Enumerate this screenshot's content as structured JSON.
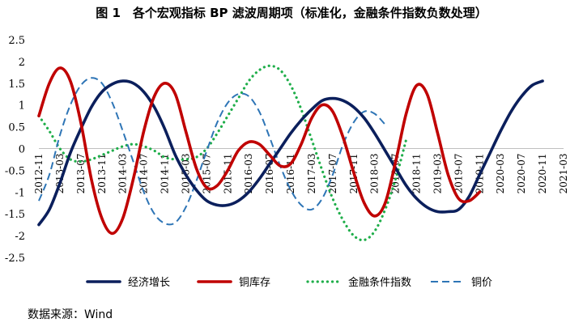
{
  "chart_data": {
    "type": "line",
    "title": "图 1　各个宏观指标 BP 滤波周期项（标准化，金融条件指数负数处理）",
    "xlabel": "",
    "ylabel": "",
    "ylim": [
      -2.5,
      2.5
    ],
    "y_ticks": [
      "2.5",
      "2",
      "1.5",
      "1",
      "0.5",
      "0",
      "-0.5",
      "-1",
      "-1.5",
      "-2",
      "-2.5"
    ],
    "x_tick_labels": [
      "2012-11",
      "2013-03",
      "2013-07",
      "2013-11",
      "2014-03",
      "2014-07",
      "2014-11",
      "2015-03",
      "2015-07",
      "2015-11",
      "2016-03",
      "2016-07",
      "2016-11",
      "2017-03",
      "2017-07",
      "2017-11",
      "2018-03",
      "2018-07",
      "2018-11",
      "2019-03",
      "2019-07",
      "2019-11",
      "2020-03",
      "2020-07",
      "2020-11",
      "2021-03"
    ],
    "grid": false,
    "legend_position": "bottom",
    "series": [
      {
        "name": "经济增长",
        "color": "#0b1f5c",
        "dash": "solid",
        "points": [
          [
            "2012-11",
            -1.75
          ],
          [
            "2013-01",
            -1.4
          ],
          [
            "2013-03",
            -0.8
          ],
          [
            "2013-05",
            -0.1
          ],
          [
            "2013-07",
            0.45
          ],
          [
            "2013-09",
            0.95
          ],
          [
            "2013-11",
            1.3
          ],
          [
            "2014-01",
            1.48
          ],
          [
            "2014-03",
            1.55
          ],
          [
            "2014-05",
            1.5
          ],
          [
            "2014-07",
            1.3
          ],
          [
            "2014-09",
            0.95
          ],
          [
            "2014-11",
            0.45
          ],
          [
            "2015-01",
            -0.15
          ],
          [
            "2015-03",
            -0.6
          ],
          [
            "2015-05",
            -0.95
          ],
          [
            "2015-07",
            -1.2
          ],
          [
            "2015-09",
            -1.3
          ],
          [
            "2015-11",
            -1.3
          ],
          [
            "2016-01",
            -1.2
          ],
          [
            "2016-03",
            -1.0
          ],
          [
            "2016-05",
            -0.7
          ],
          [
            "2016-07",
            -0.35
          ],
          [
            "2016-09",
            0.0
          ],
          [
            "2016-11",
            0.35
          ],
          [
            "2017-01",
            0.65
          ],
          [
            "2017-03",
            0.9
          ],
          [
            "2017-05",
            1.1
          ],
          [
            "2017-07",
            1.15
          ],
          [
            "2017-09",
            1.1
          ],
          [
            "2017-11",
            0.95
          ],
          [
            "2018-01",
            0.7
          ],
          [
            "2018-03",
            0.35
          ],
          [
            "2018-05",
            -0.05
          ],
          [
            "2018-07",
            -0.45
          ],
          [
            "2018-09",
            -0.85
          ],
          [
            "2018-11",
            -1.15
          ],
          [
            "2019-01",
            -1.35
          ],
          [
            "2019-03",
            -1.45
          ],
          [
            "2019-05",
            -1.45
          ],
          [
            "2019-07",
            -1.4
          ],
          [
            "2019-09",
            -1.1
          ],
          [
            "2019-11",
            -0.6
          ],
          [
            "2020-01",
            -0.1
          ],
          [
            "2020-03",
            0.4
          ],
          [
            "2020-05",
            0.85
          ],
          [
            "2020-07",
            1.2
          ],
          [
            "2020-09",
            1.45
          ],
          [
            "2020-11",
            1.55
          ]
        ]
      },
      {
        "name": "铜库存",
        "color": "#c00000",
        "dash": "solid",
        "points": [
          [
            "2012-11",
            0.75
          ],
          [
            "2013-01",
            1.5
          ],
          [
            "2013-03",
            1.85
          ],
          [
            "2013-05",
            1.55
          ],
          [
            "2013-07",
            0.6
          ],
          [
            "2013-09",
            -0.7
          ],
          [
            "2013-11",
            -1.6
          ],
          [
            "2014-01",
            -1.95
          ],
          [
            "2014-03",
            -1.6
          ],
          [
            "2014-05",
            -0.7
          ],
          [
            "2014-07",
            0.4
          ],
          [
            "2014-09",
            1.2
          ],
          [
            "2014-11",
            1.5
          ],
          [
            "2015-01",
            1.25
          ],
          [
            "2015-03",
            0.4
          ],
          [
            "2015-05",
            -0.45
          ],
          [
            "2015-07",
            -0.9
          ],
          [
            "2015-09",
            -0.85
          ],
          [
            "2015-11",
            -0.5
          ],
          [
            "2016-01",
            -0.05
          ],
          [
            "2016-03",
            0.15
          ],
          [
            "2016-05",
            0.1
          ],
          [
            "2016-07",
            -0.15
          ],
          [
            "2016-09",
            -0.4
          ],
          [
            "2016-11",
            -0.35
          ],
          [
            "2017-01",
            0.1
          ],
          [
            "2017-03",
            0.7
          ],
          [
            "2017-05",
            1.0
          ],
          [
            "2017-07",
            0.85
          ],
          [
            "2017-09",
            0.25
          ],
          [
            "2017-11",
            -0.55
          ],
          [
            "2018-01",
            -1.25
          ],
          [
            "2018-03",
            -1.55
          ],
          [
            "2018-05",
            -1.25
          ],
          [
            "2018-07",
            -0.3
          ],
          [
            "2018-09",
            0.8
          ],
          [
            "2018-11",
            1.45
          ],
          [
            "2019-01",
            1.25
          ],
          [
            "2019-03",
            0.35
          ],
          [
            "2019-05",
            -0.6
          ],
          [
            "2019-07",
            -1.15
          ],
          [
            "2019-09",
            -1.2
          ],
          [
            "2019-11",
            -1.0
          ]
        ]
      },
      {
        "name": "金融条件指数",
        "color": "#1fae4a",
        "dash": "dotted",
        "points": [
          [
            "2012-11",
            0.75
          ],
          [
            "2013-01",
            0.4
          ],
          [
            "2013-03",
            0.0
          ],
          [
            "2013-05",
            -0.25
          ],
          [
            "2013-07",
            -0.3
          ],
          [
            "2013-09",
            -0.25
          ],
          [
            "2013-11",
            -0.15
          ],
          [
            "2014-01",
            -0.05
          ],
          [
            "2014-03",
            0.05
          ],
          [
            "2014-05",
            0.1
          ],
          [
            "2014-07",
            0.05
          ],
          [
            "2014-09",
            -0.05
          ],
          [
            "2014-11",
            -0.2
          ],
          [
            "2015-01",
            -0.25
          ],
          [
            "2015-03",
            -0.25
          ],
          [
            "2015-05",
            -0.2
          ],
          [
            "2015-07",
            0.0
          ],
          [
            "2015-09",
            0.35
          ],
          [
            "2015-11",
            0.75
          ],
          [
            "2016-01",
            1.15
          ],
          [
            "2016-03",
            1.55
          ],
          [
            "2016-05",
            1.8
          ],
          [
            "2016-07",
            1.9
          ],
          [
            "2016-09",
            1.8
          ],
          [
            "2016-11",
            1.45
          ],
          [
            "2017-01",
            0.9
          ],
          [
            "2017-03",
            0.2
          ],
          [
            "2017-05",
            -0.5
          ],
          [
            "2017-07",
            -1.15
          ],
          [
            "2017-09",
            -1.65
          ],
          [
            "2017-11",
            -2.0
          ],
          [
            "2018-01",
            -2.1
          ],
          [
            "2018-03",
            -1.9
          ],
          [
            "2018-05",
            -1.4
          ],
          [
            "2018-07",
            -0.7
          ],
          [
            "2018-09",
            0.2
          ]
        ]
      },
      {
        "name": "铜价",
        "color": "#2e75b6",
        "dash": "dashed",
        "points": [
          [
            "2012-11",
            -1.2
          ],
          [
            "2013-01",
            -0.6
          ],
          [
            "2013-03",
            0.3
          ],
          [
            "2013-05",
            1.0
          ],
          [
            "2013-07",
            1.45
          ],
          [
            "2013-09",
            1.62
          ],
          [
            "2013-11",
            1.5
          ],
          [
            "2014-01",
            1.05
          ],
          [
            "2014-03",
            0.4
          ],
          [
            "2014-05",
            -0.3
          ],
          [
            "2014-07",
            -1.0
          ],
          [
            "2014-09",
            -1.5
          ],
          [
            "2014-11",
            -1.72
          ],
          [
            "2015-01",
            -1.7
          ],
          [
            "2015-03",
            -1.35
          ],
          [
            "2015-05",
            -0.75
          ],
          [
            "2015-07",
            -0.05
          ],
          [
            "2015-09",
            0.6
          ],
          [
            "2015-11",
            1.05
          ],
          [
            "2016-01",
            1.25
          ],
          [
            "2016-03",
            1.2
          ],
          [
            "2016-05",
            0.85
          ],
          [
            "2016-07",
            0.25
          ],
          [
            "2016-09",
            -0.4
          ],
          [
            "2016-11",
            -0.95
          ],
          [
            "2017-01",
            -1.3
          ],
          [
            "2017-03",
            -1.4
          ],
          [
            "2017-05",
            -1.15
          ],
          [
            "2017-07",
            -0.6
          ],
          [
            "2017-09",
            0.1
          ],
          [
            "2017-11",
            0.6
          ],
          [
            "2018-01",
            0.85
          ],
          [
            "2018-03",
            0.8
          ],
          [
            "2018-05",
            0.55
          ]
        ]
      }
    ],
    "legend": [
      {
        "name": "经济增长",
        "color": "#0b1f5c",
        "dash": "solid"
      },
      {
        "name": "铜库存",
        "color": "#c00000",
        "dash": "solid"
      },
      {
        "name": "金融条件指数",
        "color": "#1fae4a",
        "dash": "dotted"
      },
      {
        "name": "铜价",
        "color": "#2e75b6",
        "dash": "dashed"
      }
    ]
  },
  "source_note": "数据来源：Wind"
}
